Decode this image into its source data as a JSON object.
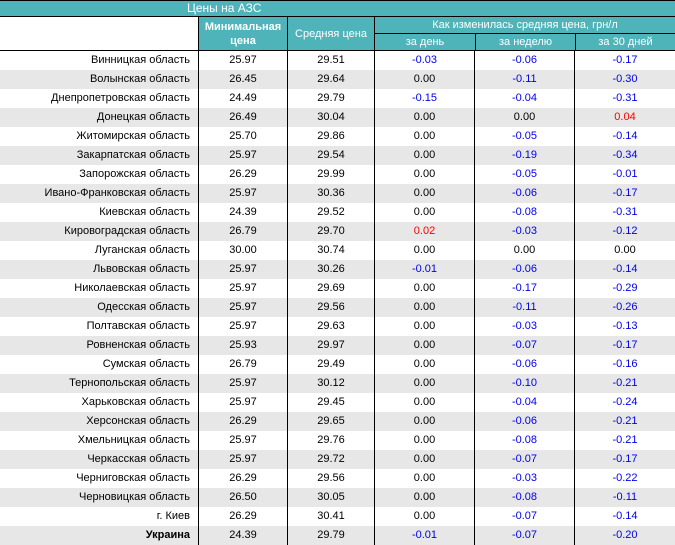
{
  "title": "Цены на АЗС",
  "colors": {
    "accent_teal": "#4fb4ba",
    "stripe_gray": "#e7e7e7",
    "negative_blue": "#0000ee",
    "positive_red": "#ff0000",
    "zero_black": "#000000"
  },
  "table": {
    "headers": {
      "region": "",
      "min_price": "Минимальная цена",
      "avg_price": "Средняя цена",
      "change_group": "Как изменилась средняя цена, грн/л",
      "change_day": "за день",
      "change_week": "за неделю",
      "change_month": "за 30 дней"
    }
  },
  "chart_data": {
    "type": "table",
    "title": "Цены на АЗС",
    "columns": [
      "",
      "Минимальная цена",
      "Средняя цена",
      "за день",
      "за неделю",
      "за 30 дней"
    ],
    "group_header": "Как изменилась средняя цена, грн/л",
    "units": "грн/л",
    "rows": [
      {
        "region": "Винницкая область",
        "min": 25.97,
        "avg": 29.51,
        "day": -0.03,
        "week": -0.06,
        "month": -0.17,
        "bold": false
      },
      {
        "region": "Волынская область",
        "min": 26.45,
        "avg": 29.64,
        "day": 0.0,
        "week": -0.11,
        "month": -0.3,
        "bold": false
      },
      {
        "region": "Днепропетровская область",
        "min": 24.49,
        "avg": 29.79,
        "day": -0.15,
        "week": -0.04,
        "month": -0.31,
        "bold": false
      },
      {
        "region": "Донецкая область",
        "min": 26.49,
        "avg": 30.04,
        "day": 0.0,
        "week": 0.0,
        "month": 0.04,
        "bold": false
      },
      {
        "region": "Житомирская область",
        "min": 25.7,
        "avg": 29.86,
        "day": 0.0,
        "week": -0.05,
        "month": -0.14,
        "bold": false
      },
      {
        "region": "Закарпатская область",
        "min": 25.97,
        "avg": 29.54,
        "day": 0.0,
        "week": -0.19,
        "month": -0.34,
        "bold": false
      },
      {
        "region": "Запорожская область",
        "min": 26.29,
        "avg": 29.99,
        "day": 0.0,
        "week": -0.05,
        "month": -0.01,
        "bold": false
      },
      {
        "region": "Ивано-Франковская область",
        "min": 25.97,
        "avg": 30.36,
        "day": 0.0,
        "week": -0.06,
        "month": -0.17,
        "bold": false
      },
      {
        "region": "Киевская область",
        "min": 24.39,
        "avg": 29.52,
        "day": 0.0,
        "week": -0.08,
        "month": -0.31,
        "bold": false
      },
      {
        "region": "Кировоградская область",
        "min": 26.79,
        "avg": 29.7,
        "day": 0.02,
        "week": -0.03,
        "month": -0.12,
        "bold": false
      },
      {
        "region": "Луганская область",
        "min": 30.0,
        "avg": 30.74,
        "day": 0.0,
        "week": 0.0,
        "month": 0.0,
        "bold": false
      },
      {
        "region": "Львовская область",
        "min": 25.97,
        "avg": 30.26,
        "day": -0.01,
        "week": -0.06,
        "month": -0.14,
        "bold": false
      },
      {
        "region": "Николаевская область",
        "min": 25.97,
        "avg": 29.69,
        "day": 0.0,
        "week": -0.17,
        "month": -0.29,
        "bold": false
      },
      {
        "region": "Одесская область",
        "min": 25.97,
        "avg": 29.56,
        "day": 0.0,
        "week": -0.11,
        "month": -0.26,
        "bold": false
      },
      {
        "region": "Полтавская область",
        "min": 25.97,
        "avg": 29.63,
        "day": 0.0,
        "week": -0.03,
        "month": -0.13,
        "bold": false
      },
      {
        "region": "Ровненская область",
        "min": 25.93,
        "avg": 29.97,
        "day": 0.0,
        "week": -0.07,
        "month": -0.17,
        "bold": false
      },
      {
        "region": "Сумская область",
        "min": 26.79,
        "avg": 29.49,
        "day": 0.0,
        "week": -0.06,
        "month": -0.16,
        "bold": false
      },
      {
        "region": "Тернопольская область",
        "min": 25.97,
        "avg": 30.12,
        "day": 0.0,
        "week": -0.1,
        "month": -0.21,
        "bold": false
      },
      {
        "region": "Харьковская область",
        "min": 25.97,
        "avg": 29.45,
        "day": 0.0,
        "week": -0.04,
        "month": -0.24,
        "bold": false
      },
      {
        "region": "Херсонская область",
        "min": 26.29,
        "avg": 29.65,
        "day": 0.0,
        "week": -0.06,
        "month": -0.21,
        "bold": false
      },
      {
        "region": "Хмельницкая область",
        "min": 25.97,
        "avg": 29.76,
        "day": 0.0,
        "week": -0.08,
        "month": -0.21,
        "bold": false
      },
      {
        "region": "Черкасская область",
        "min": 25.97,
        "avg": 29.72,
        "day": 0.0,
        "week": -0.07,
        "month": -0.17,
        "bold": false
      },
      {
        "region": "Черниговская область",
        "min": 26.29,
        "avg": 29.56,
        "day": 0.0,
        "week": -0.03,
        "month": -0.22,
        "bold": false
      },
      {
        "region": "Черновицкая область",
        "min": 26.5,
        "avg": 30.05,
        "day": 0.0,
        "week": -0.08,
        "month": -0.11,
        "bold": false
      },
      {
        "region": "г. Киев",
        "min": 26.29,
        "avg": 30.41,
        "day": 0.0,
        "week": -0.07,
        "month": -0.14,
        "bold": false
      },
      {
        "region": "Украина",
        "min": 24.39,
        "avg": 29.79,
        "day": -0.01,
        "week": -0.07,
        "month": -0.2,
        "bold": true
      }
    ]
  }
}
